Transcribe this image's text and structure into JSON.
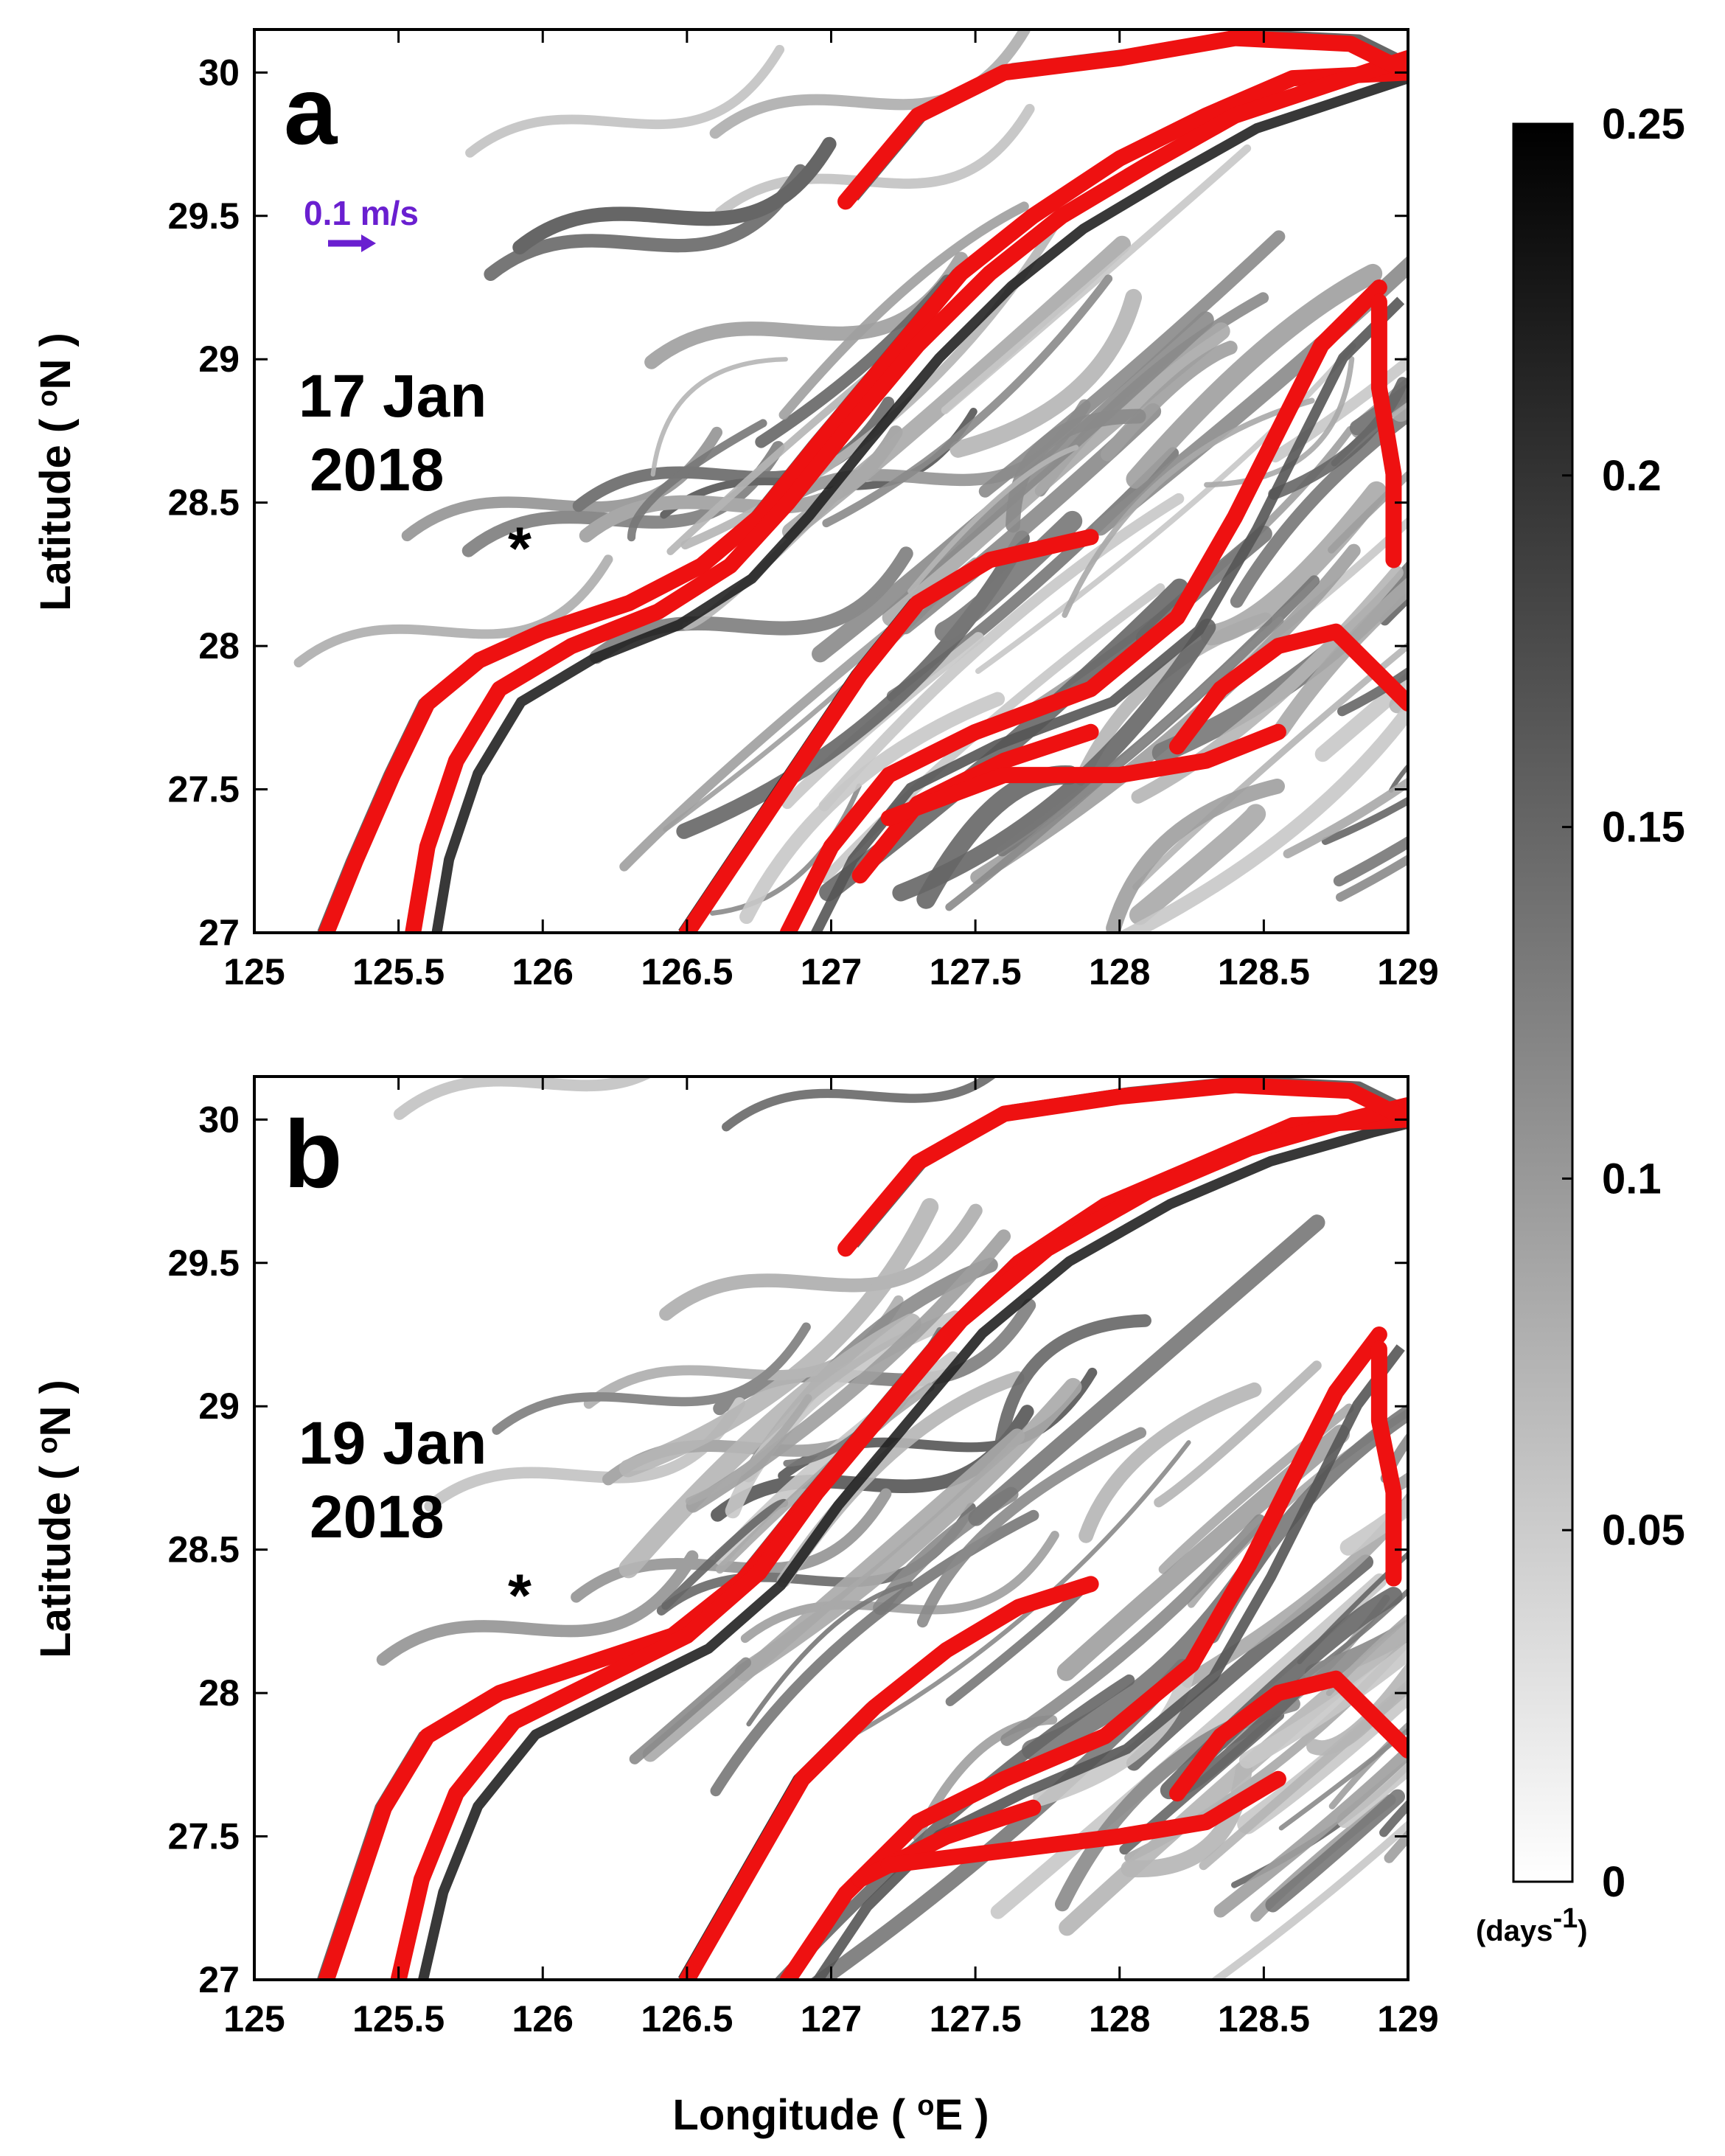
{
  "chart_data": [
    {
      "type": "heatmap",
      "panel": "a",
      "title": "",
      "annotation_line1": "17 Jan",
      "annotation_line2": "2018",
      "xlabel": "Longitude ( °E )",
      "ylabel": "Latitude ( °N )",
      "xlim": [
        125,
        129
      ],
      "ylim": [
        27,
        30.15
      ],
      "xticks": [
        "125",
        "125.5",
        "126",
        "126.5",
        "127",
        "127.5",
        "128",
        "128.5",
        "129"
      ],
      "yticks": [
        "27",
        "27.5",
        "28",
        "28.5",
        "29",
        "29.5",
        "30"
      ],
      "marker": {
        "label": "*",
        "lon": 125.92,
        "lat": 28.37
      },
      "velocity_scale_label": "0.1 m/s",
      "colors": {
        "ridges": "#7a7a7a",
        "drifters": "#ee1111",
        "vectors": "#6a1fd0"
      },
      "drifter_tracks": [
        [
          [
            125.25,
            27.0
          ],
          [
            125.35,
            27.25
          ],
          [
            125.48,
            27.55
          ],
          [
            125.6,
            27.8
          ],
          [
            125.78,
            27.95
          ],
          [
            126.0,
            28.05
          ],
          [
            126.3,
            28.15
          ],
          [
            126.55,
            28.28
          ],
          [
            126.75,
            28.45
          ],
          [
            126.95,
            28.7
          ],
          [
            127.2,
            29.0
          ],
          [
            127.45,
            29.3
          ],
          [
            127.7,
            29.5
          ],
          [
            128.0,
            29.7
          ],
          [
            128.3,
            29.85
          ],
          [
            128.6,
            29.98
          ],
          [
            129.0,
            30.0
          ]
        ],
        [
          [
            125.55,
            27.0
          ],
          [
            125.6,
            27.3
          ],
          [
            125.7,
            27.6
          ],
          [
            125.85,
            27.85
          ],
          [
            126.1,
            28.0
          ],
          [
            126.4,
            28.12
          ],
          [
            126.65,
            28.28
          ],
          [
            126.85,
            28.5
          ],
          [
            127.05,
            28.75
          ],
          [
            127.3,
            29.05
          ],
          [
            127.55,
            29.3
          ],
          [
            127.8,
            29.5
          ],
          [
            128.1,
            29.68
          ],
          [
            128.4,
            29.85
          ],
          [
            128.7,
            29.95
          ],
          [
            129.0,
            30.05
          ]
        ],
        [
          [
            127.05,
            29.55
          ],
          [
            127.3,
            29.85
          ],
          [
            127.6,
            30.0
          ],
          [
            128.0,
            30.05
          ],
          [
            128.4,
            30.12
          ],
          [
            128.8,
            30.1
          ],
          [
            129.0,
            30.0
          ]
        ],
        [
          [
            126.5,
            27.0
          ],
          [
            126.7,
            27.3
          ],
          [
            126.9,
            27.6
          ],
          [
            127.1,
            27.9
          ],
          [
            127.3,
            28.15
          ],
          [
            127.55,
            28.3
          ],
          [
            127.9,
            28.38
          ]
        ],
        [
          [
            126.85,
            27.0
          ],
          [
            127.0,
            27.3
          ],
          [
            127.2,
            27.55
          ],
          [
            127.5,
            27.7
          ],
          [
            127.9,
            27.85
          ],
          [
            128.2,
            28.1
          ],
          [
            128.4,
            28.45
          ],
          [
            128.55,
            28.75
          ],
          [
            128.7,
            29.05
          ],
          [
            128.9,
            29.25
          ]
        ],
        [
          [
            127.1,
            27.2
          ],
          [
            127.3,
            27.45
          ],
          [
            127.6,
            27.6
          ],
          [
            127.9,
            27.7
          ]
        ],
        [
          [
            127.2,
            27.4
          ],
          [
            127.6,
            27.55
          ],
          [
            128.0,
            27.55
          ],
          [
            128.3,
            27.6
          ],
          [
            128.55,
            27.7
          ]
        ],
        [
          [
            128.2,
            27.65
          ],
          [
            128.35,
            27.85
          ],
          [
            128.55,
            28.0
          ],
          [
            128.75,
            28.05
          ],
          [
            129.0,
            27.8
          ]
        ],
        [
          [
            128.95,
            28.3
          ],
          [
            128.95,
            28.6
          ],
          [
            128.9,
            28.9
          ],
          [
            128.9,
            29.2
          ]
        ]
      ]
    },
    {
      "type": "heatmap",
      "panel": "b",
      "title": "",
      "annotation_line1": "19 Jan",
      "annotation_line2": "2018",
      "xlabel": "Longitude ( °E )",
      "ylabel": "Latitude ( °N )",
      "xlim": [
        125,
        129
      ],
      "ylim": [
        27,
        30.15
      ],
      "xticks": [
        "125",
        "125.5",
        "126",
        "126.5",
        "127",
        "127.5",
        "128",
        "128.5",
        "129"
      ],
      "yticks": [
        "27",
        "27.5",
        "28",
        "28.5",
        "29",
        "29.5",
        "30"
      ],
      "marker": {
        "label": "*",
        "lon": 125.92,
        "lat": 28.37
      },
      "colors": {
        "ridges": "#7a7a7a",
        "drifters": "#ee1111"
      },
      "drifter_tracks": [
        [
          [
            125.25,
            27.0
          ],
          [
            125.35,
            27.3
          ],
          [
            125.45,
            27.6
          ],
          [
            125.6,
            27.85
          ],
          [
            125.85,
            28.0
          ],
          [
            126.15,
            28.1
          ],
          [
            126.45,
            28.2
          ],
          [
            126.7,
            28.4
          ],
          [
            126.9,
            28.65
          ],
          [
            127.15,
            28.95
          ],
          [
            127.4,
            29.25
          ],
          [
            127.65,
            29.5
          ],
          [
            127.95,
            29.7
          ],
          [
            128.3,
            29.85
          ],
          [
            128.6,
            29.98
          ],
          [
            129.0,
            30.0
          ]
        ],
        [
          [
            125.5,
            27.0
          ],
          [
            125.58,
            27.35
          ],
          [
            125.7,
            27.65
          ],
          [
            125.9,
            27.9
          ],
          [
            126.2,
            28.05
          ],
          [
            126.5,
            28.2
          ],
          [
            126.75,
            28.42
          ],
          [
            126.95,
            28.7
          ],
          [
            127.2,
            29.0
          ],
          [
            127.45,
            29.3
          ],
          [
            127.75,
            29.55
          ],
          [
            128.1,
            29.75
          ],
          [
            128.45,
            29.9
          ],
          [
            128.8,
            30.0
          ],
          [
            129.0,
            30.05
          ]
        ],
        [
          [
            127.05,
            29.55
          ],
          [
            127.3,
            29.85
          ],
          [
            127.6,
            30.02
          ],
          [
            128.0,
            30.08
          ],
          [
            128.4,
            30.12
          ],
          [
            128.8,
            30.1
          ],
          [
            129.0,
            30.0
          ]
        ],
        [
          [
            126.5,
            27.0
          ],
          [
            126.7,
            27.35
          ],
          [
            126.9,
            27.7
          ],
          [
            127.15,
            27.95
          ],
          [
            127.4,
            28.15
          ],
          [
            127.65,
            28.3
          ],
          [
            127.9,
            28.38
          ]
        ],
        [
          [
            126.85,
            27.0
          ],
          [
            127.05,
            27.3
          ],
          [
            127.3,
            27.55
          ],
          [
            127.6,
            27.7
          ],
          [
            127.95,
            27.85
          ],
          [
            128.25,
            28.1
          ],
          [
            128.45,
            28.45
          ],
          [
            128.6,
            28.75
          ],
          [
            128.75,
            29.05
          ],
          [
            128.9,
            29.25
          ]
        ],
        [
          [
            127.1,
            27.35
          ],
          [
            127.4,
            27.5
          ],
          [
            127.7,
            27.6
          ]
        ],
        [
          [
            127.2,
            27.4
          ],
          [
            127.6,
            27.45
          ],
          [
            128.0,
            27.5
          ],
          [
            128.3,
            27.55
          ],
          [
            128.55,
            27.7
          ]
        ],
        [
          [
            128.2,
            27.65
          ],
          [
            128.35,
            27.85
          ],
          [
            128.55,
            28.0
          ],
          [
            128.75,
            28.05
          ],
          [
            129.0,
            27.8
          ]
        ],
        [
          [
            128.95,
            28.4
          ],
          [
            128.95,
            28.7
          ],
          [
            128.9,
            28.95
          ],
          [
            128.9,
            29.2
          ]
        ]
      ]
    }
  ],
  "colorbar": {
    "min": 0,
    "max": 0.25,
    "ticks": [
      "0.25",
      "0.2",
      "0.15",
      "0.1",
      "0.05",
      "0"
    ],
    "unit_main": "(days",
    "unit_sup": "-1",
    "unit_close": ")"
  }
}
